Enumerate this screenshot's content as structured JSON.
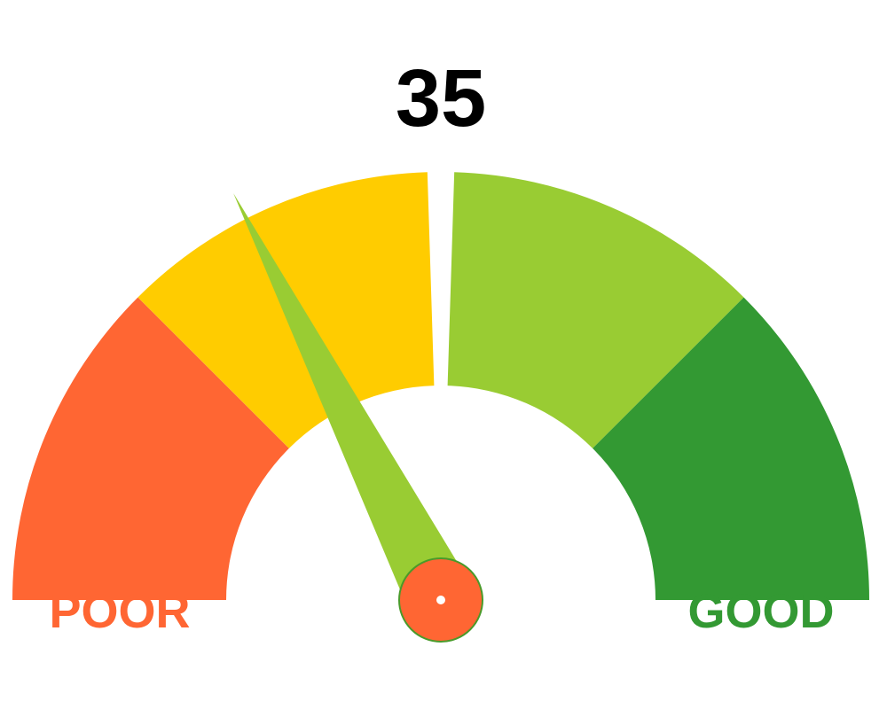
{
  "chart_data": {
    "type": "gauge",
    "value": 35,
    "value_label": "35",
    "min": 0,
    "max": 100,
    "bands": [
      {
        "from": 0,
        "to": 25,
        "color": "#ff6633"
      },
      {
        "from": 25,
        "to": 50,
        "color": "#ffcc00"
      },
      {
        "from": 50,
        "to": 75,
        "color": "#99cc33"
      },
      {
        "from": 75,
        "to": 100,
        "color": "#339933"
      }
    ],
    "min_label": "POOR",
    "max_label": "GOOD",
    "min_label_color": "#ff6633",
    "max_label_color": "#339933",
    "needle_color": "#99cc33",
    "hub_color": "#ff6633",
    "value_color": "#000000"
  }
}
